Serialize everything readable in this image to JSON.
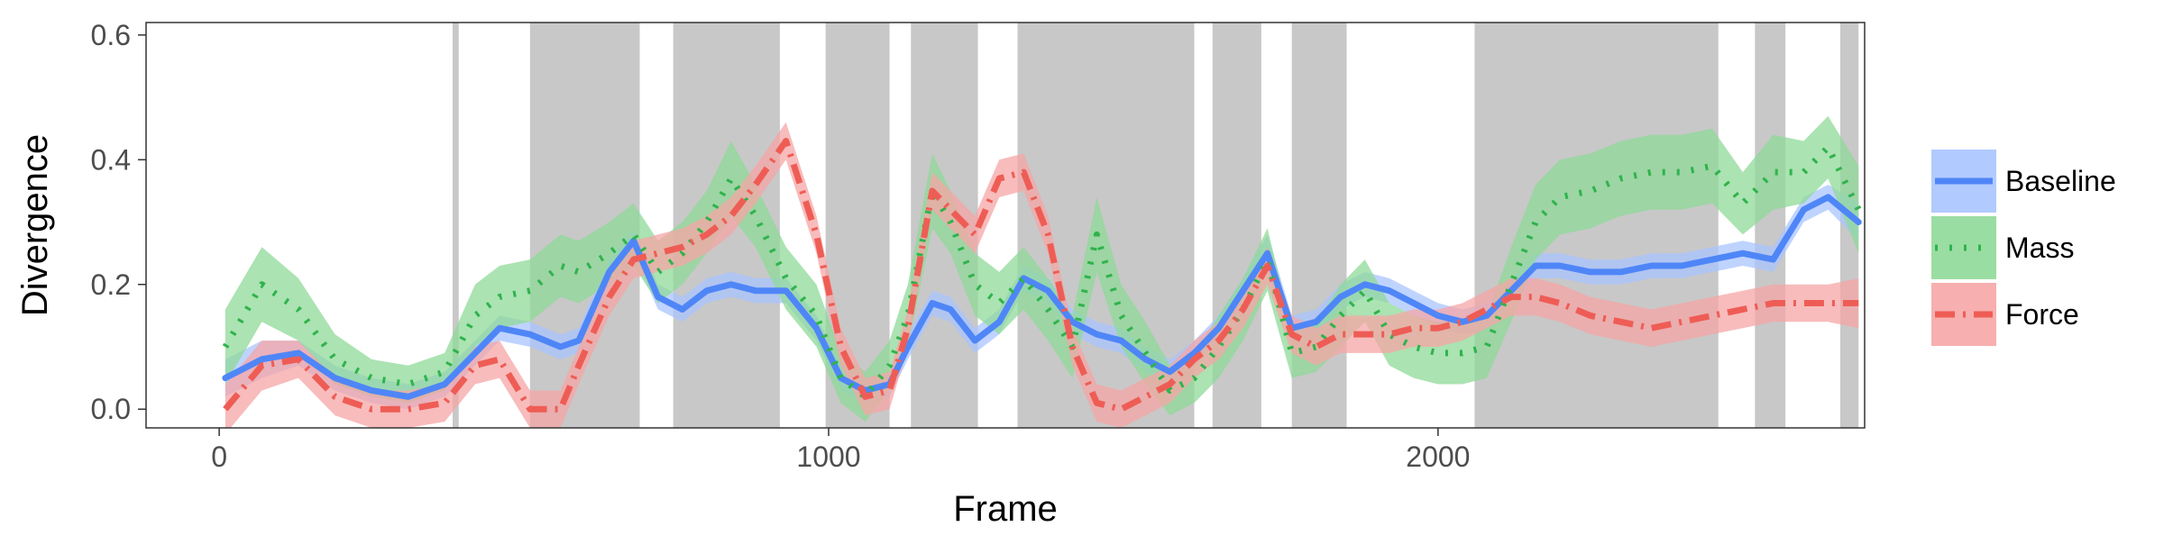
{
  "chart_data": {
    "type": "line",
    "title": "",
    "xlabel": "Frame",
    "ylabel": "Divergence",
    "xlim": [
      -120,
      2700
    ],
    "ylim": [
      -0.03,
      0.62
    ],
    "x_ticks": [
      0,
      1000,
      2000
    ],
    "x_tick_labels": [
      "0",
      "1000",
      "2000"
    ],
    "y_ticks": [
      0.0,
      0.2,
      0.4,
      0.6
    ],
    "y_tick_labels": [
      "0.0",
      "0.2",
      "0.4",
      "0.6"
    ],
    "grid": false,
    "legend_position": "right",
    "shaded_intervals": [
      [
        383,
        393
      ],
      [
        510,
        690
      ],
      [
        745,
        920
      ],
      [
        995,
        1100
      ],
      [
        1135,
        1245
      ],
      [
        1310,
        1600
      ],
      [
        1630,
        1710
      ],
      [
        1760,
        1850
      ],
      [
        2060,
        2460
      ],
      [
        2520,
        2570
      ],
      [
        2660,
        2690
      ]
    ],
    "series": [
      {
        "name": "Baseline",
        "color": "#4f86f7",
        "band_color": "#a9c4ff",
        "dash": "solid",
        "x": [
          10,
          70,
          130,
          190,
          250,
          310,
          370,
          420,
          460,
          510,
          560,
          590,
          640,
          680,
          720,
          760,
          800,
          840,
          880,
          930,
          980,
          1020,
          1060,
          1100,
          1130,
          1170,
          1200,
          1240,
          1280,
          1320,
          1360,
          1400,
          1440,
          1480,
          1520,
          1560,
          1600,
          1640,
          1680,
          1720,
          1760,
          1800,
          1840,
          1880,
          1920,
          1960,
          2000,
          2040,
          2080,
          2120,
          2160,
          2200,
          2250,
          2300,
          2350,
          2400,
          2450,
          2500,
          2550,
          2600,
          2640,
          2690
        ],
        "y": [
          0.05,
          0.08,
          0.09,
          0.05,
          0.03,
          0.02,
          0.04,
          0.09,
          0.13,
          0.12,
          0.1,
          0.11,
          0.22,
          0.27,
          0.18,
          0.16,
          0.19,
          0.2,
          0.19,
          0.19,
          0.13,
          0.05,
          0.03,
          0.04,
          0.1,
          0.17,
          0.16,
          0.11,
          0.14,
          0.21,
          0.19,
          0.14,
          0.12,
          0.11,
          0.08,
          0.06,
          0.09,
          0.13,
          0.19,
          0.25,
          0.13,
          0.14,
          0.18,
          0.2,
          0.19,
          0.17,
          0.15,
          0.14,
          0.15,
          0.19,
          0.23,
          0.23,
          0.22,
          0.22,
          0.23,
          0.23,
          0.24,
          0.25,
          0.24,
          0.32,
          0.34,
          0.3
        ],
        "err": [
          0.03,
          0.03,
          0.02,
          0.02,
          0.02,
          0.02,
          0.02,
          0.02,
          0.02,
          0.02,
          0.02,
          0.02,
          0.02,
          0.02,
          0.02,
          0.02,
          0.02,
          0.02,
          0.02,
          0.02,
          0.02,
          0.02,
          0.02,
          0.02,
          0.02,
          0.02,
          0.02,
          0.02,
          0.02,
          0.02,
          0.02,
          0.02,
          0.02,
          0.02,
          0.02,
          0.02,
          0.02,
          0.02,
          0.02,
          0.03,
          0.02,
          0.02,
          0.02,
          0.02,
          0.02,
          0.02,
          0.02,
          0.02,
          0.02,
          0.02,
          0.02,
          0.02,
          0.02,
          0.02,
          0.02,
          0.02,
          0.02,
          0.02,
          0.02,
          0.02,
          0.02,
          0.03
        ]
      },
      {
        "name": "Mass",
        "color": "#2fb34c",
        "band_color": "#8fd998",
        "dash": "dotted",
        "x": [
          10,
          70,
          130,
          190,
          250,
          310,
          370,
          420,
          460,
          510,
          560,
          590,
          640,
          680,
          720,
          760,
          800,
          840,
          880,
          930,
          980,
          1020,
          1060,
          1100,
          1130,
          1170,
          1200,
          1240,
          1280,
          1320,
          1360,
          1400,
          1440,
          1480,
          1520,
          1560,
          1600,
          1640,
          1680,
          1720,
          1760,
          1800,
          1840,
          1880,
          1920,
          1960,
          2000,
          2040,
          2080,
          2120,
          2160,
          2200,
          2250,
          2300,
          2350,
          2400,
          2450,
          2500,
          2550,
          2600,
          2640,
          2690
        ],
        "y": [
          0.1,
          0.2,
          0.16,
          0.08,
          0.05,
          0.04,
          0.06,
          0.15,
          0.18,
          0.19,
          0.23,
          0.22,
          0.25,
          0.28,
          0.22,
          0.25,
          0.3,
          0.37,
          0.31,
          0.21,
          0.15,
          0.05,
          0.02,
          0.07,
          0.15,
          0.35,
          0.3,
          0.2,
          0.17,
          0.21,
          0.16,
          0.1,
          0.28,
          0.15,
          0.09,
          0.03,
          0.05,
          0.1,
          0.16,
          0.24,
          0.09,
          0.1,
          0.15,
          0.19,
          0.12,
          0.1,
          0.09,
          0.09,
          0.1,
          0.2,
          0.3,
          0.34,
          0.35,
          0.37,
          0.38,
          0.38,
          0.39,
          0.33,
          0.38,
          0.38,
          0.42,
          0.32
        ],
        "err": [
          0.06,
          0.06,
          0.05,
          0.04,
          0.03,
          0.03,
          0.03,
          0.05,
          0.05,
          0.05,
          0.05,
          0.05,
          0.05,
          0.05,
          0.05,
          0.05,
          0.05,
          0.06,
          0.05,
          0.05,
          0.05,
          0.04,
          0.04,
          0.04,
          0.05,
          0.06,
          0.05,
          0.05,
          0.05,
          0.05,
          0.05,
          0.05,
          0.06,
          0.05,
          0.05,
          0.04,
          0.04,
          0.05,
          0.05,
          0.05,
          0.04,
          0.04,
          0.05,
          0.05,
          0.05,
          0.05,
          0.05,
          0.05,
          0.05,
          0.06,
          0.06,
          0.06,
          0.06,
          0.06,
          0.06,
          0.06,
          0.06,
          0.05,
          0.06,
          0.05,
          0.05,
          0.07
        ]
      },
      {
        "name": "Force",
        "color": "#ee5d55",
        "band_color": "#f6a6a6",
        "dash": "dashdot",
        "x": [
          10,
          70,
          130,
          190,
          250,
          310,
          370,
          420,
          460,
          510,
          560,
          590,
          640,
          680,
          720,
          760,
          800,
          840,
          880,
          930,
          980,
          1020,
          1060,
          1100,
          1130,
          1170,
          1200,
          1240,
          1280,
          1320,
          1360,
          1400,
          1440,
          1480,
          1520,
          1560,
          1600,
          1640,
          1680,
          1720,
          1760,
          1800,
          1840,
          1880,
          1920,
          1960,
          2000,
          2040,
          2080,
          2120,
          2160,
          2200,
          2250,
          2300,
          2350,
          2400,
          2450,
          2500,
          2550,
          2600,
          2640,
          2690
        ],
        "y": [
          0.0,
          0.07,
          0.08,
          0.02,
          0.0,
          0.0,
          0.01,
          0.07,
          0.08,
          0.0,
          0.0,
          0.07,
          0.18,
          0.24,
          0.25,
          0.26,
          0.28,
          0.31,
          0.36,
          0.43,
          0.28,
          0.1,
          0.02,
          0.03,
          0.13,
          0.35,
          0.32,
          0.28,
          0.37,
          0.38,
          0.28,
          0.1,
          0.01,
          0.0,
          0.02,
          0.04,
          0.08,
          0.11,
          0.16,
          0.23,
          0.12,
          0.1,
          0.12,
          0.12,
          0.12,
          0.13,
          0.13,
          0.14,
          0.16,
          0.18,
          0.18,
          0.17,
          0.15,
          0.14,
          0.13,
          0.14,
          0.15,
          0.16,
          0.17,
          0.17,
          0.17,
          0.17
        ],
        "err": [
          0.04,
          0.04,
          0.03,
          0.03,
          0.03,
          0.03,
          0.03,
          0.03,
          0.03,
          0.03,
          0.03,
          0.03,
          0.03,
          0.03,
          0.03,
          0.03,
          0.03,
          0.03,
          0.03,
          0.03,
          0.03,
          0.03,
          0.03,
          0.03,
          0.03,
          0.03,
          0.03,
          0.03,
          0.03,
          0.03,
          0.03,
          0.03,
          0.03,
          0.03,
          0.03,
          0.03,
          0.03,
          0.03,
          0.03,
          0.03,
          0.03,
          0.03,
          0.03,
          0.03,
          0.03,
          0.03,
          0.03,
          0.03,
          0.03,
          0.03,
          0.03,
          0.03,
          0.03,
          0.03,
          0.03,
          0.03,
          0.03,
          0.03,
          0.03,
          0.03,
          0.03,
          0.04
        ]
      }
    ]
  }
}
